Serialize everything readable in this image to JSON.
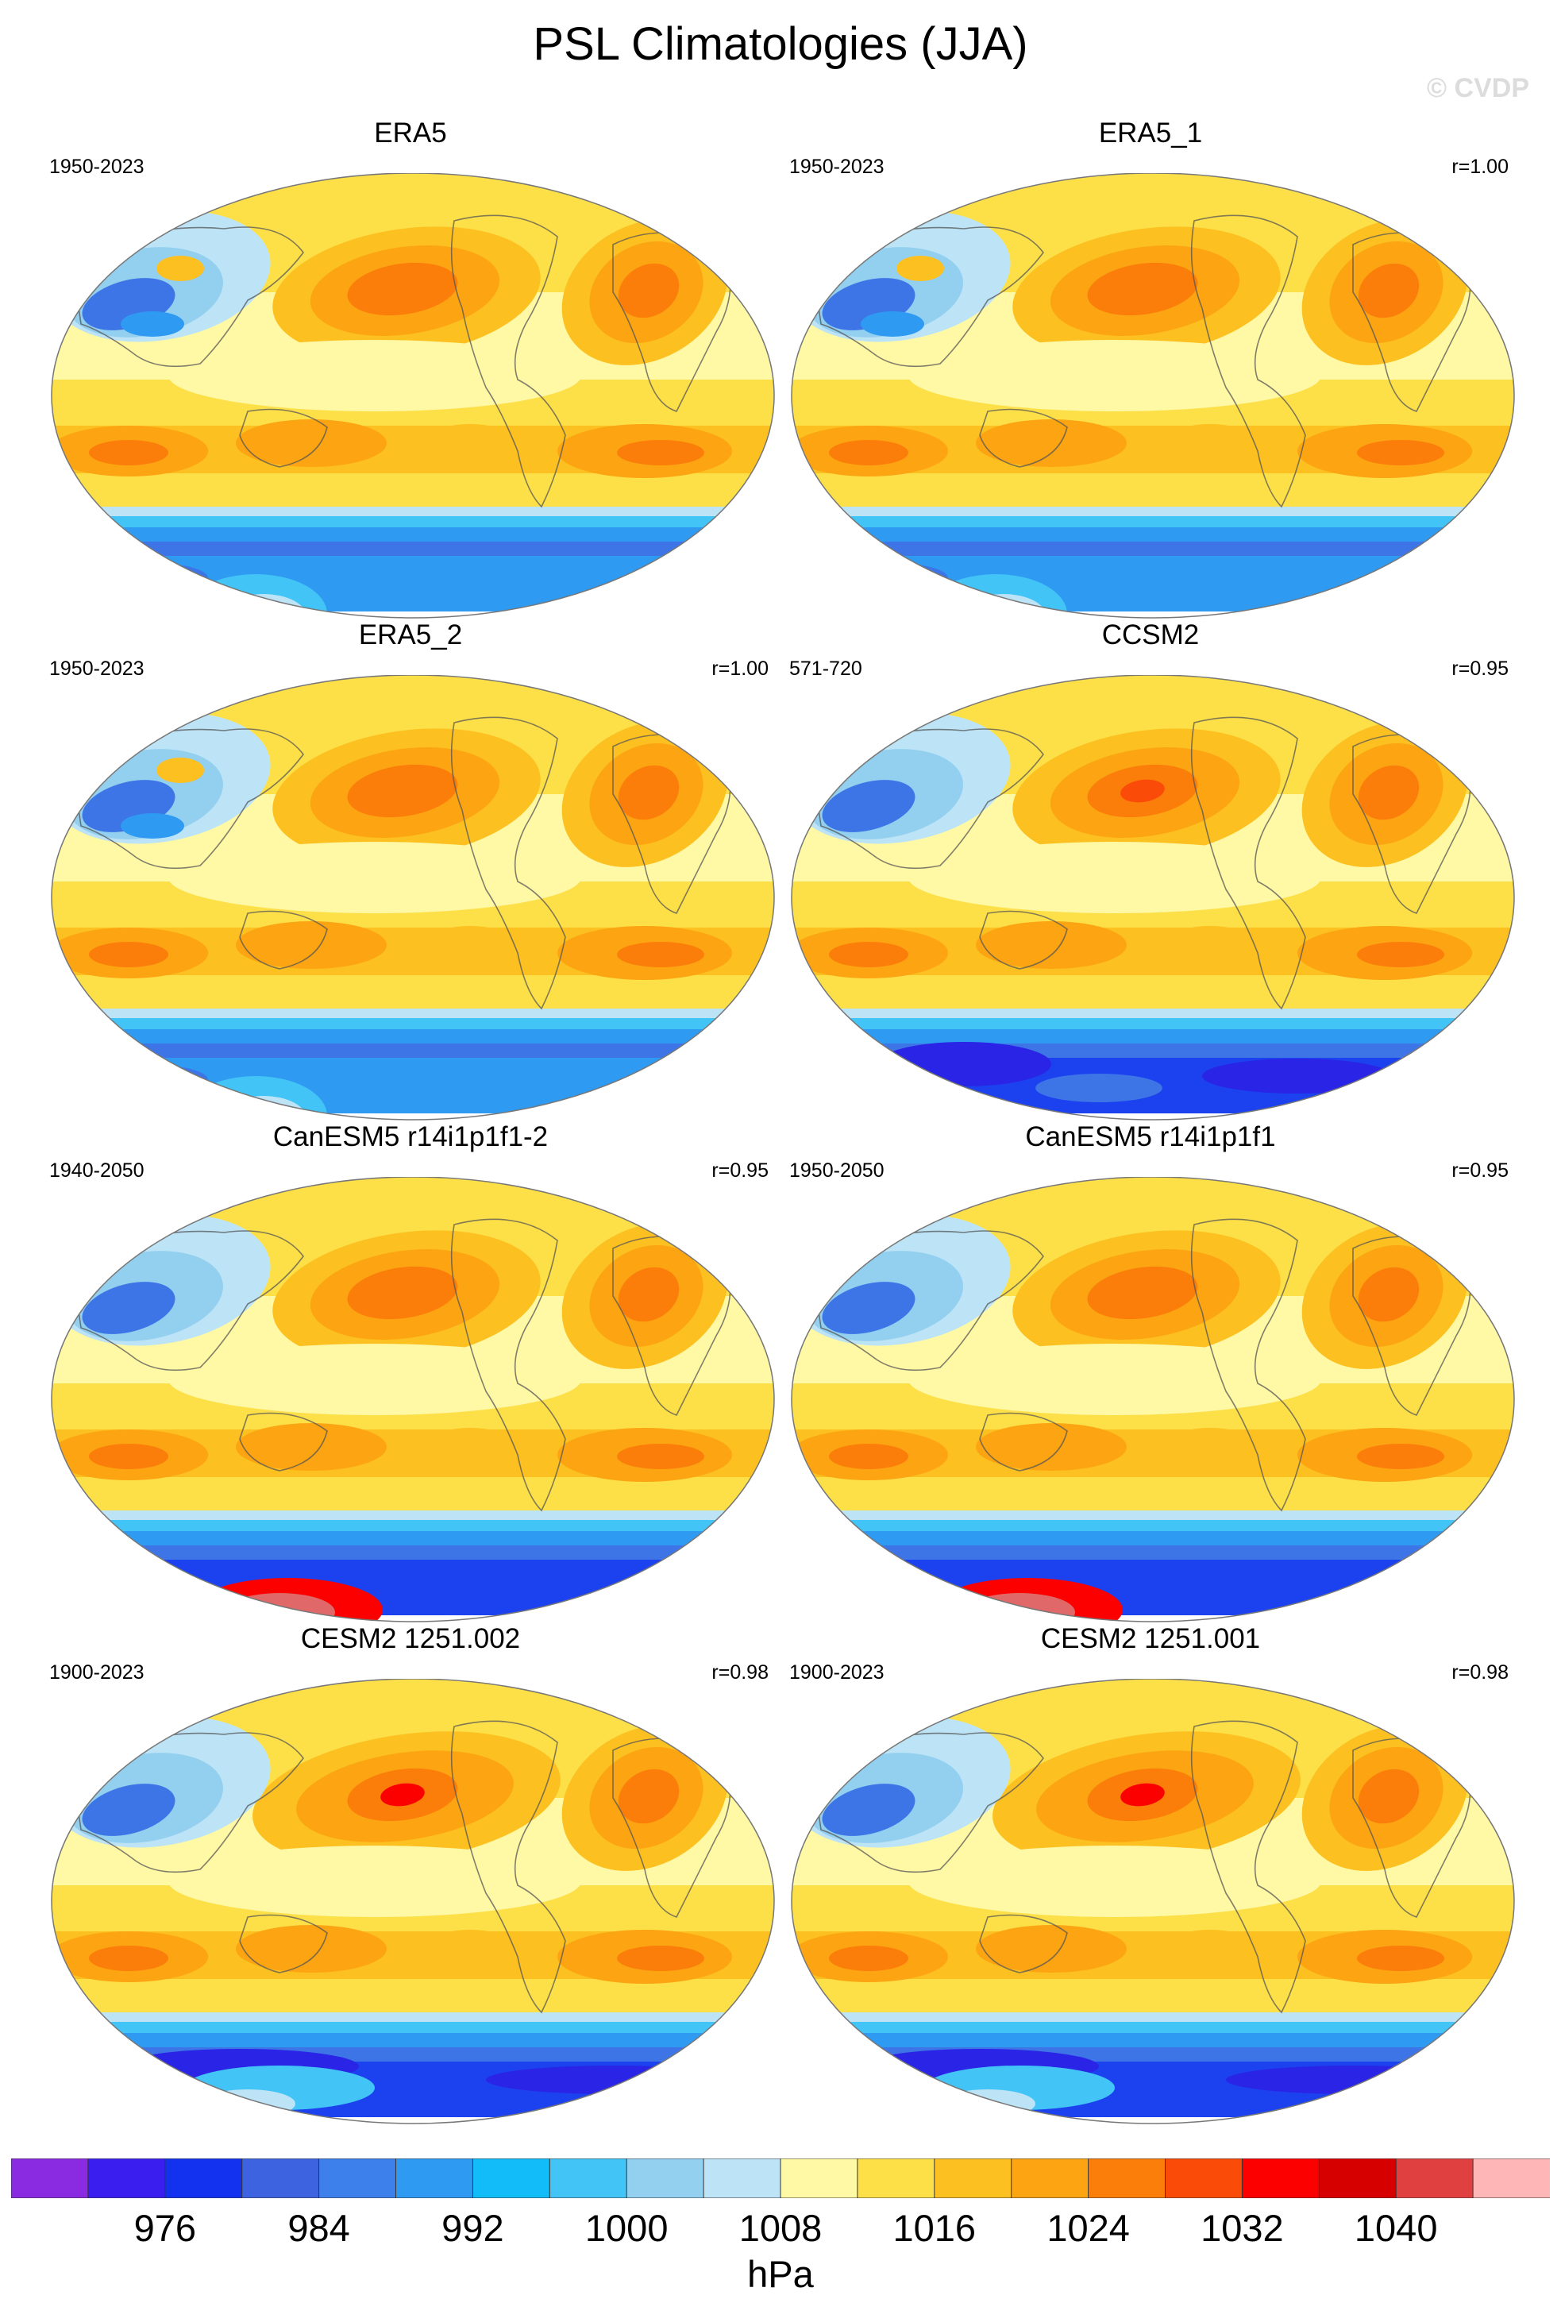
{
  "title": "PSL Climatologies (JJA)",
  "watermark": "© CVDP",
  "panels": [
    {
      "title": "ERA5",
      "years": "1950-2023",
      "r": "",
      "variant": "era"
    },
    {
      "title": "ERA5_1",
      "years": "1950-2023",
      "r": "r=1.00",
      "variant": "era"
    },
    {
      "title": "ERA5_2",
      "years": "1950-2023",
      "r": "r=1.00",
      "variant": "era"
    },
    {
      "title": "CCSM2",
      "years": "571-720",
      "r": "r=0.95",
      "variant": "ccsm"
    },
    {
      "title": "CanESM5 r14i1p1f1-2",
      "years": "1940-2050",
      "r": "r=0.95",
      "variant": "can"
    },
    {
      "title": "CanESM5 r14i1p1f1",
      "years": "1950-2050",
      "r": "r=0.95",
      "variant": "can"
    },
    {
      "title": "CESM2 1251.002",
      "years": "1900-2023",
      "r": "r=0.98",
      "variant": "cesm"
    },
    {
      "title": "CESM2 1251.001",
      "years": "1900-2023",
      "r": "r=0.98",
      "variant": "cesm"
    }
  ],
  "colorbar": {
    "units": "hPa",
    "colors": [
      "#8a2be2",
      "#3a1ef0",
      "#1232f0",
      "#3e63e0",
      "#3d80ec",
      "#2e9af2",
      "#12bcf8",
      "#42c4f6",
      "#93cfee",
      "#bde3f6",
      "#fff8a4",
      "#fde048",
      "#fcc020",
      "#fca412",
      "#fc7e0a",
      "#fa4b08",
      "#fc0000",
      "#d60000",
      "#e04040",
      "#ffb6b6"
    ],
    "ticks": [
      "976",
      "984",
      "992",
      "1000",
      "1008",
      "1016",
      "1024",
      "1032",
      "1040"
    ]
  }
}
